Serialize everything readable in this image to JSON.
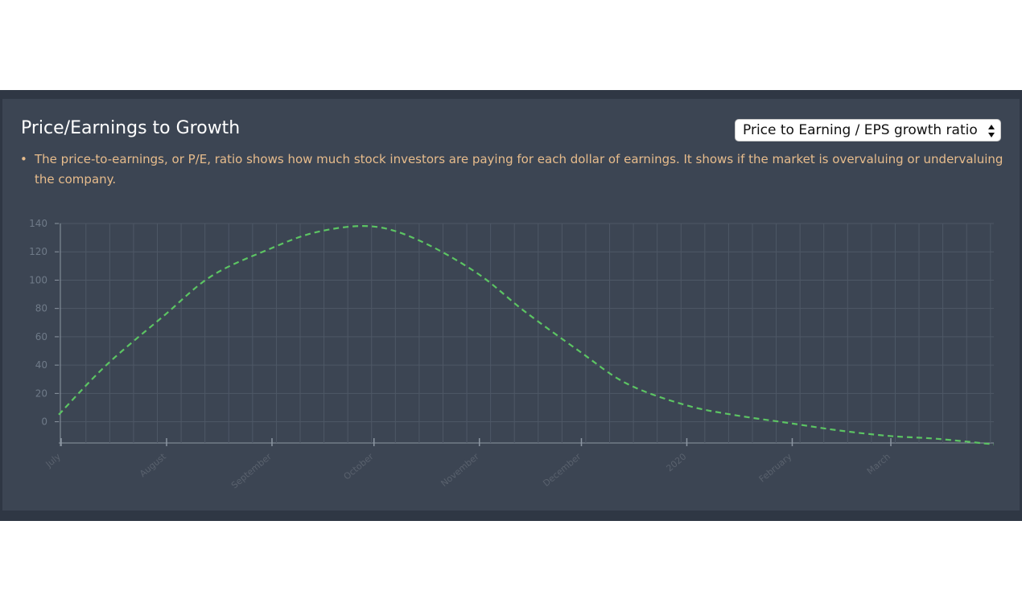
{
  "header": {
    "title": "Price/Earnings to Growth",
    "select": {
      "selected": "Price to Earning / EPS growth ratio",
      "arrows_icon": "up-down-arrows-icon"
    }
  },
  "description": [
    "The price-to-earnings, or P/E, ratio shows how much stock investors are paying for each dollar of earnings. It shows if the market is overvaluing or undervaluing the company."
  ],
  "colors": {
    "background": "#2f3744",
    "card": "#3c4553",
    "title": "#ffffff",
    "description": "#e7bc8c",
    "line": "#5cc463",
    "grid": "#4e5866",
    "axis": "#8c96a2"
  },
  "chart_data": {
    "type": "line",
    "title": "",
    "xlabel": "",
    "ylabel": "",
    "ylim": [
      -15,
      140
    ],
    "yticks": [
      0,
      20,
      40,
      60,
      80,
      100,
      120,
      140
    ],
    "x_ticks": [
      "July",
      "August",
      "September",
      "October",
      "November",
      "December",
      "2020",
      "February",
      "March"
    ],
    "x_range": [
      "2019-07-01",
      "2020-04-01"
    ],
    "grid": true,
    "line_style": "dashed",
    "series": [
      {
        "x": [
          "2019-07-01",
          "2019-07-15",
          "2019-08-01",
          "2019-08-15",
          "2019-09-01",
          "2019-09-15",
          "2019-10-01",
          "2019-10-15",
          "2019-11-01",
          "2019-11-15",
          "2019-12-01",
          "2019-12-15",
          "2020-01-01",
          "2020-01-15",
          "2020-02-01",
          "2020-02-15",
          "2020-03-01",
          "2020-03-15",
          "2020-04-01"
        ],
        "values": [
          5,
          40,
          75,
          103,
          122,
          134,
          138,
          128,
          105,
          78,
          50,
          27,
          12,
          5,
          -1,
          -6,
          -10,
          -12,
          -16
        ]
      }
    ]
  }
}
